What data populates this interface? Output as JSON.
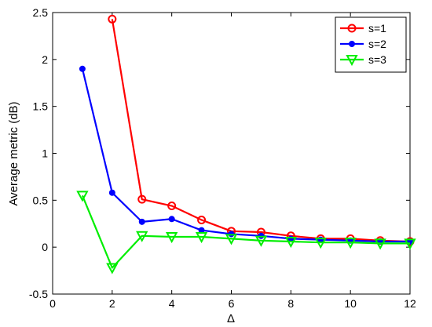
{
  "chart_data": {
    "type": "line",
    "xlabel": "Δ",
    "ylabel": "Average metric (dB)",
    "xlim": [
      0,
      12
    ],
    "ylim": [
      -0.5,
      2.5
    ],
    "xticks": [
      "0",
      "2",
      "4",
      "6",
      "8",
      "10",
      "12"
    ],
    "yticks": [
      "-0.5",
      "0",
      "0.5",
      "1",
      "1.5",
      "2",
      "2.5"
    ],
    "grid": false,
    "legend_position": "top-right",
    "series": [
      {
        "name": "s=1",
        "color": "#ff0000",
        "marker": "circle-open",
        "x": [
          2,
          3,
          4,
          5,
          6,
          7,
          8,
          9,
          10,
          11,
          12
        ],
        "y": [
          2.43,
          0.51,
          0.44,
          0.29,
          0.17,
          0.16,
          0.12,
          0.09,
          0.09,
          0.07,
          0.06
        ]
      },
      {
        "name": "s=2",
        "color": "#0000ff",
        "marker": "dot",
        "x": [
          1,
          2,
          3,
          4,
          5,
          6,
          7,
          8,
          9,
          10,
          11,
          12
        ],
        "y": [
          1.9,
          0.58,
          0.27,
          0.3,
          0.18,
          0.14,
          0.12,
          0.09,
          0.08,
          0.07,
          0.06,
          0.06
        ]
      },
      {
        "name": "s=3",
        "color": "#00ee00",
        "marker": "triangle-down",
        "x": [
          1,
          2,
          3,
          4,
          5,
          6,
          7,
          8,
          9,
          10,
          11,
          12
        ],
        "y": [
          0.55,
          -0.22,
          0.12,
          0.11,
          0.11,
          0.09,
          0.07,
          0.06,
          0.05,
          0.05,
          0.04,
          0.04
        ]
      }
    ]
  }
}
